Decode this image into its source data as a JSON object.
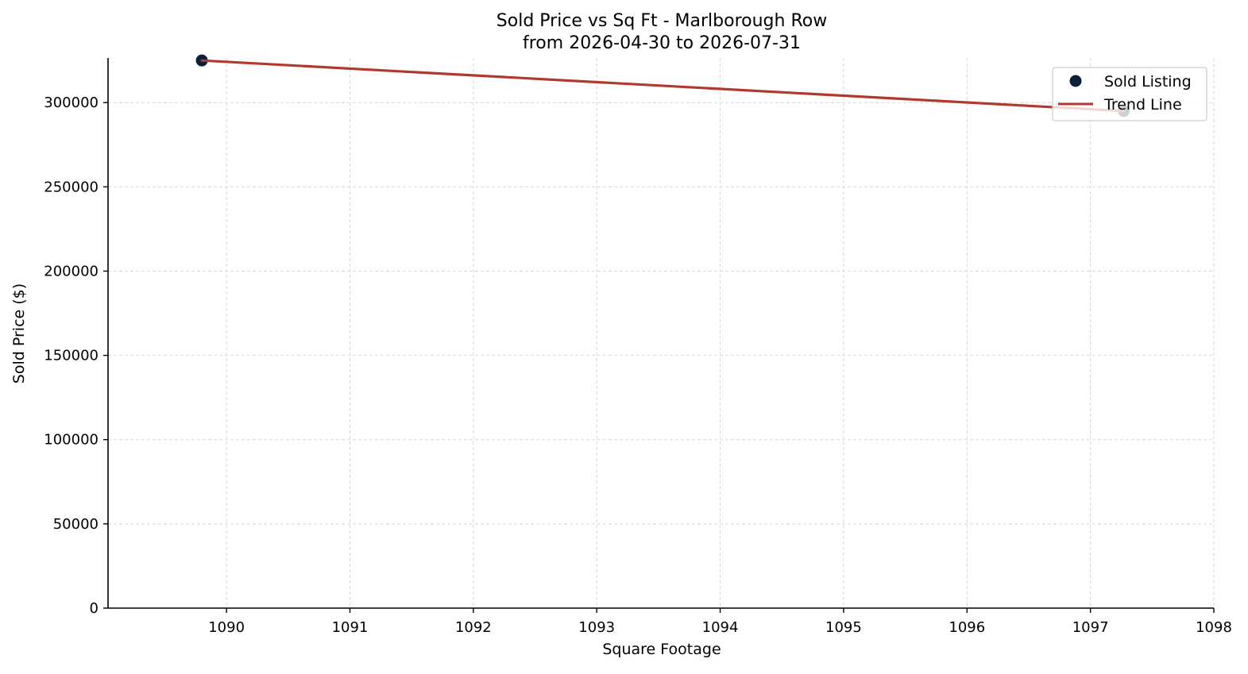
{
  "chart_data": {
    "type": "scatter",
    "title": "Sold Price vs Sq Ft - Marlborough Row",
    "subtitle": "from 2026-04-30 to 2026-07-31",
    "xlabel": "Square Footage",
    "ylabel": "Sold Price ($)",
    "xlim": [
      1089.04,
      1098.0
    ],
    "ylim": [
      0,
      326500
    ],
    "xticks": [
      1090,
      1091,
      1092,
      1093,
      1094,
      1095,
      1096,
      1097,
      1098
    ],
    "yticks": [
      0,
      50000,
      100000,
      150000,
      200000,
      250000,
      300000
    ],
    "xtick_labels": [
      "1090",
      "1091",
      "1092",
      "1093",
      "1094",
      "1095",
      "1096",
      "1097",
      "1098"
    ],
    "ytick_labels": [
      "0",
      "50000",
      "100000",
      "150000",
      "200000",
      "250000",
      "300000"
    ],
    "grid": true,
    "legend_position": "top-right",
    "series": [
      {
        "name": "Sold Listing",
        "kind": "scatter",
        "color": "#0b1f3a",
        "points": [
          {
            "x": 1089.8,
            "y": 325000
          },
          {
            "x": 1097.27,
            "y": 295000
          }
        ]
      },
      {
        "name": "Trend Line",
        "kind": "line",
        "color": "#b03a2e",
        "points": [
          {
            "x": 1089.8,
            "y": 325000
          },
          {
            "x": 1097.27,
            "y": 295000
          }
        ]
      }
    ]
  }
}
